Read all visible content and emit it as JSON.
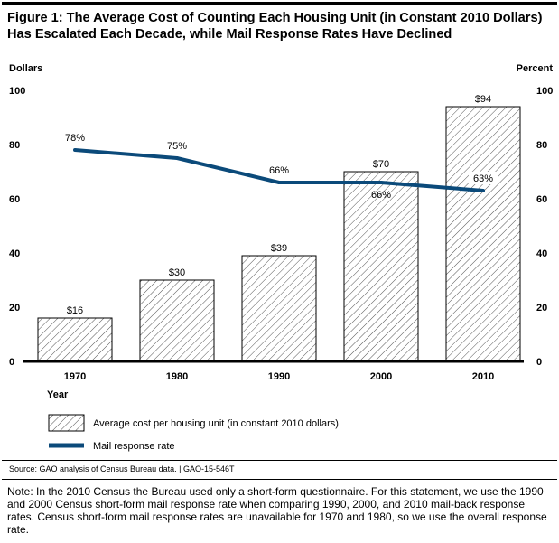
{
  "title": "Figure 1: The Average Cost of Counting Each Housing Unit (in Constant 2010 Dollars) Has Escalated Each Decade, while Mail Response Rates Have Declined",
  "source": "Source: GAO analysis of Census Bureau data.  |  GAO-15-546T",
  "note": "Note: In the 2010 Census the Bureau used only a short-form questionnaire. For this statement, we use the 1990 and 2000 Census short-form mail response rate when comparing 1990, 2000, and 2010 mail-back response rates. Census short-form mail response rates are unavailable for 1970 and 1980, so we use the overall response rate.",
  "colors": {
    "line": "#0b4a7a",
    "bar_fill": "#ffffff",
    "hatch": "#555555",
    "axis": "#000000"
  },
  "chart_data": {
    "type": "bar",
    "title": "",
    "xlabel": "Year",
    "ylabel": "Dollars",
    "ylabel_right": "Percent",
    "categories": [
      "1970",
      "1980",
      "1990",
      "2000",
      "2010"
    ],
    "ylim": [
      0,
      100
    ],
    "yticks": [
      "0",
      "20",
      "40",
      "60",
      "80",
      "100"
    ],
    "grid": false,
    "legend_position": "bottom",
    "series": [
      {
        "name": "Average cost per housing unit (in constant 2010 dollars)",
        "kind": "bar",
        "axis": "left",
        "values": [
          16,
          30,
          39,
          70,
          94
        ],
        "labels": [
          "$16",
          "$30",
          "$39",
          "$70",
          "$94"
        ]
      },
      {
        "name": "Mail response rate",
        "kind": "line",
        "axis": "right",
        "values": [
          78,
          75,
          66,
          66,
          63
        ],
        "labels": [
          "78%",
          "75%",
          "66%",
          "66%",
          "63%"
        ]
      }
    ]
  }
}
